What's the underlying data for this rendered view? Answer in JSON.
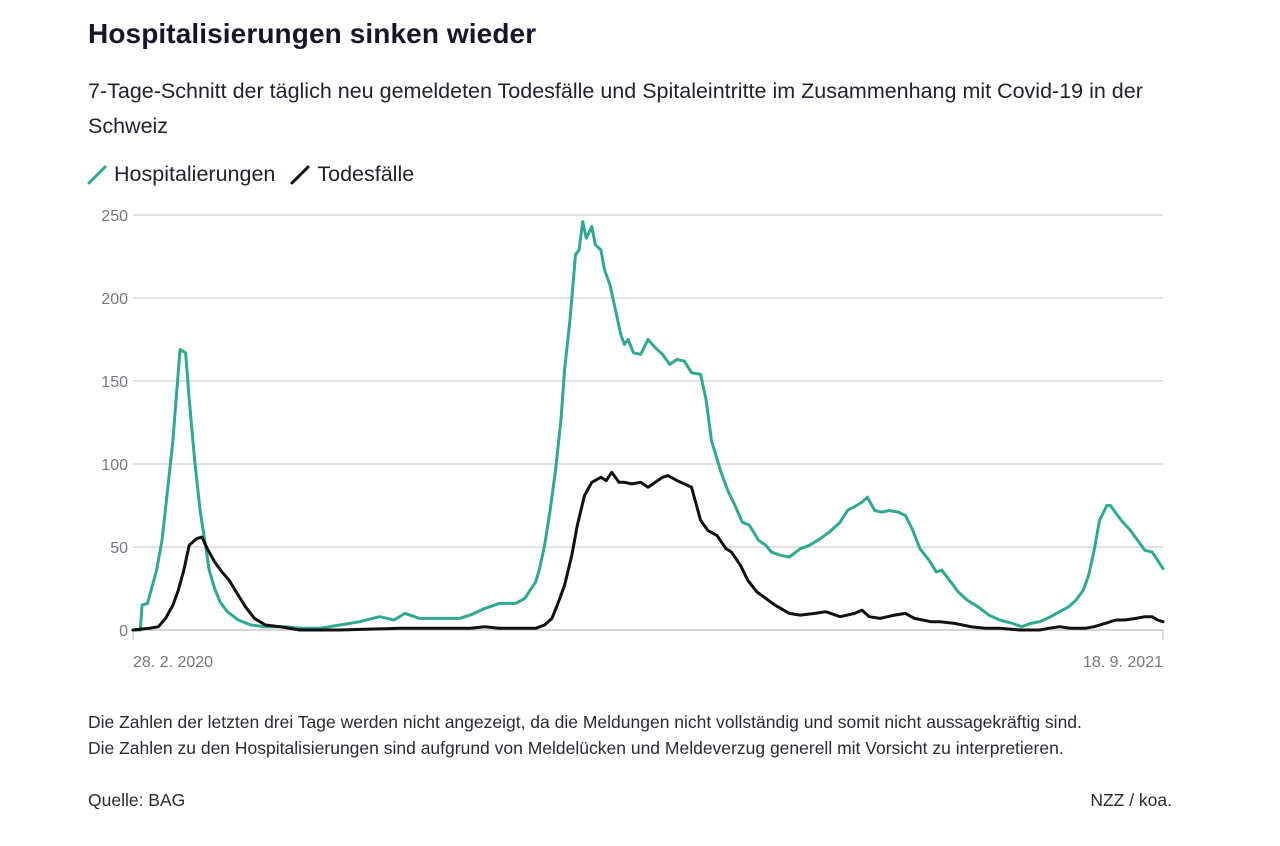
{
  "header": {
    "title": "Hospitalisierungen sinken wieder",
    "subtitle": "7-Tage-Schnitt der täglich neu gemeldeten Todesfälle und Spitaleintritte im Zusammenhang mit Covid-19 in der Schweiz"
  },
  "legend": [
    {
      "label": "Hospitalierungen",
      "color": "#2fa894",
      "icon": "line-slash-icon"
    },
    {
      "label": "Todesfälle",
      "color": "#111111",
      "icon": "line-slash-icon"
    }
  ],
  "footer": {
    "note": "Die Zahlen der letzten drei Tage werden nicht angezeigt, da die Meldungen nicht vollständig und somit nicht aussagekräftig sind. Die Zahlen zu den Hospitalisierungen sind aufgrund von Meldelücken und Meldeverzug generell mit Vorsicht zu interpretieren.",
    "source": "Quelle: BAG",
    "credit": "NZZ / koa."
  },
  "chart_data": {
    "type": "line",
    "title": "Hospitalisierungen sinken wieder",
    "subtitle": "7-Tage-Schnitt der täglich neu gemeldeten Todesfälle und Spitaleintritte im Zusammenhang mit Covid-19 in der Schweiz",
    "xlabel": "",
    "ylabel": "",
    "x_unit": "days since 28.2.2020",
    "x_range": [
      0,
      568
    ],
    "x_tick_labels": [
      {
        "day": 0,
        "label": "28. 2. 2020"
      },
      {
        "day": 568,
        "label": "18. 9. 2021"
      }
    ],
    "ylim": [
      0,
      250
    ],
    "y_ticks": [
      0,
      50,
      100,
      150,
      200,
      250
    ],
    "y_tick_labels": [
      "0",
      "50",
      "100",
      "150",
      "200",
      "250"
    ],
    "grid": true,
    "legend_position": "top-left",
    "series": [
      {
        "name": "Hospitalierungen",
        "color": "#2fa894",
        "points": [
          [
            0,
            0
          ],
          [
            4,
            0
          ],
          [
            5,
            15
          ],
          [
            8,
            16
          ],
          [
            10,
            24
          ],
          [
            13,
            36
          ],
          [
            16,
            54
          ],
          [
            19,
            84
          ],
          [
            22,
            114
          ],
          [
            24,
            142
          ],
          [
            26,
            169
          ],
          [
            29,
            167
          ],
          [
            31,
            139
          ],
          [
            34,
            102
          ],
          [
            37,
            72
          ],
          [
            40,
            51
          ],
          [
            42,
            36
          ],
          [
            45,
            25
          ],
          [
            48,
            17
          ],
          [
            52,
            11
          ],
          [
            58,
            6
          ],
          [
            65,
            3
          ],
          [
            73,
            2
          ],
          [
            84,
            2
          ],
          [
            92,
            1
          ],
          [
            103,
            1
          ],
          [
            114,
            3
          ],
          [
            125,
            5
          ],
          [
            136,
            8
          ],
          [
            144,
            6
          ],
          [
            150,
            10
          ],
          [
            158,
            7
          ],
          [
            169,
            7
          ],
          [
            180,
            7
          ],
          [
            186,
            9
          ],
          [
            194,
            13
          ],
          [
            202,
            16
          ],
          [
            211,
            16
          ],
          [
            216,
            19
          ],
          [
            222,
            29
          ],
          [
            224,
            36
          ],
          [
            227,
            51
          ],
          [
            230,
            72
          ],
          [
            233,
            96
          ],
          [
            236,
            127
          ],
          [
            238,
            157
          ],
          [
            241,
            187
          ],
          [
            244,
            226
          ],
          [
            246,
            229
          ],
          [
            248,
            246
          ],
          [
            250,
            236
          ],
          [
            253,
            243
          ],
          [
            255,
            232
          ],
          [
            258,
            229
          ],
          [
            260,
            217
          ],
          [
            263,
            208
          ],
          [
            266,
            193
          ],
          [
            269,
            178
          ],
          [
            271,
            172
          ],
          [
            273,
            175
          ],
          [
            276,
            167
          ],
          [
            280,
            166
          ],
          [
            284,
            175
          ],
          [
            288,
            170
          ],
          [
            292,
            166
          ],
          [
            296,
            160
          ],
          [
            300,
            163
          ],
          [
            304,
            162
          ],
          [
            308,
            155
          ],
          [
            313,
            154
          ],
          [
            316,
            139
          ],
          [
            319,
            114
          ],
          [
            324,
            96
          ],
          [
            328,
            84
          ],
          [
            332,
            75
          ],
          [
            336,
            65
          ],
          [
            340,
            63
          ],
          [
            345,
            54
          ],
          [
            349,
            51
          ],
          [
            352,
            47
          ],
          [
            357,
            45
          ],
          [
            362,
            44
          ],
          [
            368,
            49
          ],
          [
            373,
            51
          ],
          [
            379,
            55
          ],
          [
            384,
            59
          ],
          [
            390,
            65
          ],
          [
            394,
            72
          ],
          [
            399,
            75
          ],
          [
            402,
            77
          ],
          [
            405,
            80
          ],
          [
            409,
            72
          ],
          [
            413,
            71
          ],
          [
            417,
            72
          ],
          [
            422,
            71
          ],
          [
            426,
            69
          ],
          [
            430,
            60
          ],
          [
            434,
            49
          ],
          [
            439,
            42
          ],
          [
            443,
            35
          ],
          [
            446,
            36
          ],
          [
            451,
            29
          ],
          [
            455,
            23
          ],
          [
            460,
            18
          ],
          [
            466,
            14
          ],
          [
            472,
            9
          ],
          [
            478,
            6
          ],
          [
            485,
            4
          ],
          [
            490,
            2
          ],
          [
            495,
            4
          ],
          [
            500,
            5
          ],
          [
            506,
            8
          ],
          [
            511,
            11
          ],
          [
            516,
            14
          ],
          [
            520,
            18
          ],
          [
            524,
            24
          ],
          [
            527,
            33
          ],
          [
            530,
            48
          ],
          [
            533,
            66
          ],
          [
            537,
            75
          ],
          [
            539,
            75
          ],
          [
            541,
            72
          ],
          [
            545,
            66
          ],
          [
            550,
            60
          ],
          [
            554,
            54
          ],
          [
            558,
            48
          ],
          [
            562,
            47
          ],
          [
            565,
            42
          ],
          [
            568,
            37
          ]
        ]
      },
      {
        "name": "Todesfälle",
        "color": "#111111",
        "points": [
          [
            0,
            0
          ],
          [
            9,
            1
          ],
          [
            14,
            2
          ],
          [
            18,
            7
          ],
          [
            22,
            15
          ],
          [
            25,
            24
          ],
          [
            28,
            36
          ],
          [
            31,
            51
          ],
          [
            35,
            55
          ],
          [
            38,
            56
          ],
          [
            41,
            49
          ],
          [
            45,
            41
          ],
          [
            49,
            35
          ],
          [
            53,
            30
          ],
          [
            58,
            21
          ],
          [
            62,
            14
          ],
          [
            67,
            7
          ],
          [
            73,
            3
          ],
          [
            81,
            2
          ],
          [
            92,
            0
          ],
          [
            114,
            0
          ],
          [
            147,
            1
          ],
          [
            169,
            1
          ],
          [
            186,
            1
          ],
          [
            194,
            2
          ],
          [
            202,
            1
          ],
          [
            213,
            1
          ],
          [
            222,
            1
          ],
          [
            227,
            3
          ],
          [
            231,
            7
          ],
          [
            234,
            15
          ],
          [
            238,
            27
          ],
          [
            242,
            45
          ],
          [
            245,
            63
          ],
          [
            249,
            81
          ],
          [
            253,
            89
          ],
          [
            258,
            92
          ],
          [
            261,
            90
          ],
          [
            264,
            95
          ],
          [
            268,
            89
          ],
          [
            271,
            89
          ],
          [
            275,
            88
          ],
          [
            280,
            89
          ],
          [
            284,
            86
          ],
          [
            288,
            89
          ],
          [
            292,
            92
          ],
          [
            295,
            93
          ],
          [
            300,
            90
          ],
          [
            304,
            88
          ],
          [
            308,
            86
          ],
          [
            313,
            66
          ],
          [
            317,
            60
          ],
          [
            322,
            57
          ],
          [
            327,
            49
          ],
          [
            330,
            47
          ],
          [
            335,
            39
          ],
          [
            339,
            30
          ],
          [
            344,
            23
          ],
          [
            349,
            19
          ],
          [
            354,
            15
          ],
          [
            362,
            10
          ],
          [
            368,
            9
          ],
          [
            376,
            10
          ],
          [
            382,
            11
          ],
          [
            390,
            8
          ],
          [
            398,
            10
          ],
          [
            402,
            12
          ],
          [
            406,
            8
          ],
          [
            412,
            7
          ],
          [
            420,
            9
          ],
          [
            426,
            10
          ],
          [
            431,
            7
          ],
          [
            440,
            5
          ],
          [
            445,
            5
          ],
          [
            453,
            4
          ],
          [
            462,
            2
          ],
          [
            470,
            1
          ],
          [
            478,
            1
          ],
          [
            489,
            0
          ],
          [
            500,
            0
          ],
          [
            505,
            1
          ],
          [
            511,
            2
          ],
          [
            517,
            1
          ],
          [
            525,
            1
          ],
          [
            530,
            2
          ],
          [
            536,
            4
          ],
          [
            542,
            6
          ],
          [
            547,
            6
          ],
          [
            553,
            7
          ],
          [
            558,
            8
          ],
          [
            562,
            8
          ],
          [
            565,
            6
          ],
          [
            568,
            5
          ]
        ]
      }
    ]
  }
}
